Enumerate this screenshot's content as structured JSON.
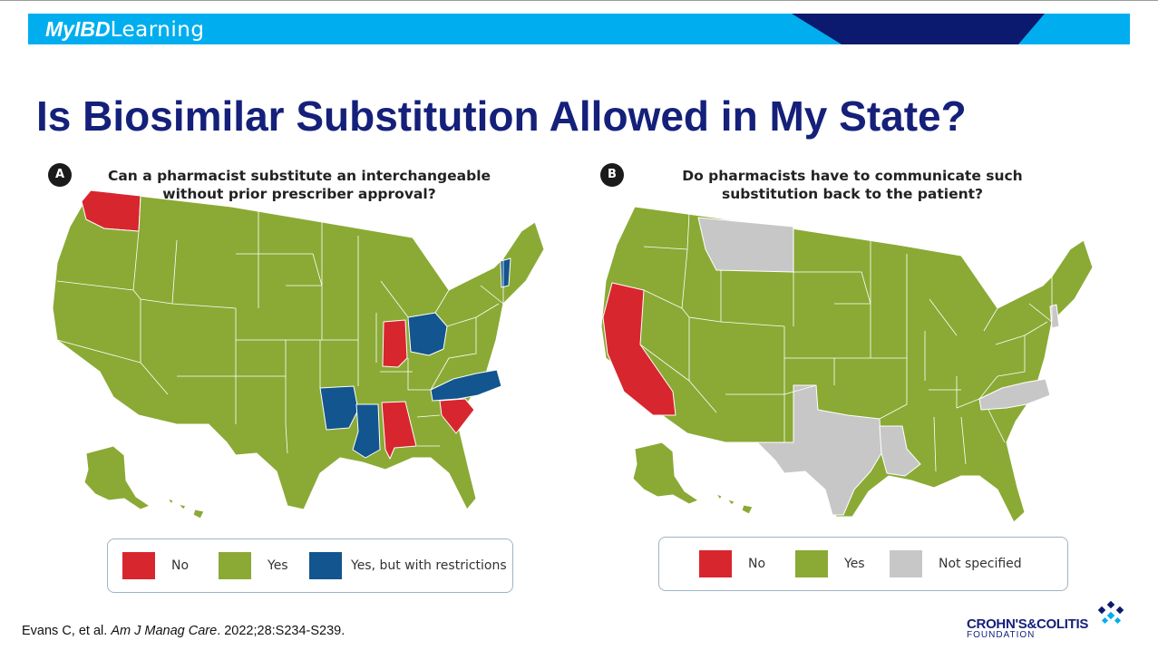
{
  "brand": {
    "part1": "MyIBD",
    "part2": "Learning"
  },
  "title": "Is Biosimilar Substitution Allowed in My State?",
  "colors": {
    "no": "#d8262e",
    "yes": "#8aaa35",
    "restricted": "#13558e",
    "not_specified": "#c7c7c7",
    "title": "#14207a",
    "banner": "#00aeef",
    "banner_dark": "#0b1a6e"
  },
  "panels": [
    {
      "badge": "A",
      "question_line1": "Can a pharmacist substitute an interchangeable",
      "question_line2": "without prior prescriber approval?",
      "legend": [
        {
          "key": "no",
          "label": "No"
        },
        {
          "key": "yes",
          "label": "Yes"
        },
        {
          "key": "restricted",
          "label": "Yes, but with restrictions"
        }
      ],
      "states": {
        "no": [
          "Washington",
          "Indiana",
          "Alabama",
          "South Carolina"
        ],
        "restricted": [
          "Vermont",
          "Ohio",
          "Arkansas",
          "Mississippi",
          "North Carolina"
        ],
        "yes": [
          "All other states"
        ]
      }
    },
    {
      "badge": "B",
      "question_line1": "Do pharmacists have to communicate such",
      "question_line2": "substitution back to the patient?",
      "legend": [
        {
          "key": "no",
          "label": "No"
        },
        {
          "key": "yes",
          "label": "Yes"
        },
        {
          "key": "not_specified",
          "label": "Not specified"
        }
      ],
      "states": {
        "no": [
          "California"
        ],
        "not_specified": [
          "Montana",
          "Texas",
          "Louisiana",
          "North Carolina",
          "New Jersey"
        ],
        "yes": [
          "All other states"
        ]
      }
    }
  ],
  "citation": {
    "authors": "Evans C, et al. ",
    "journal": "Am J Manag Care",
    "details": ". 2022;28:S234-S239."
  },
  "logo": {
    "name": "CROHN'S&COLITIS",
    "sub": "FOUNDATION"
  }
}
